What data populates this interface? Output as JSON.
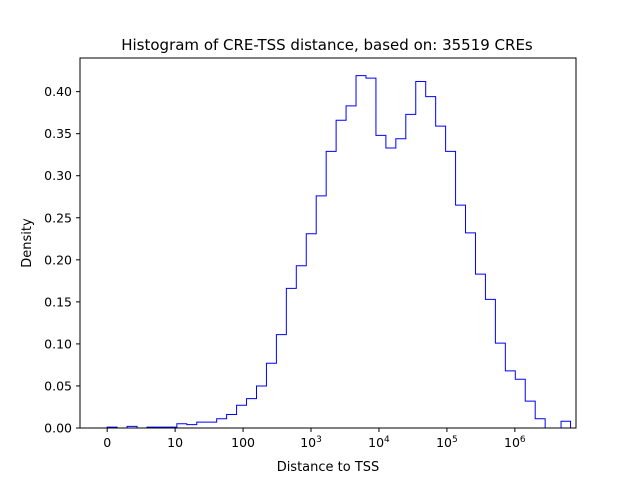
{
  "chart_data": {
    "type": "histogram",
    "title": "Histogram of CRE-TSS distance, based on: 35519 CREs",
    "xlabel": "Distance to TSS",
    "ylabel": "Density",
    "xscale": "log-like (0, 10, 100, 10^3, 10^4, 10^5, 10^6)",
    "xlim": [
      -0.4,
      6.9
    ],
    "ylim": [
      0,
      0.44
    ],
    "grid": false,
    "histtype": "step",
    "color": "#0000ff",
    "x_ticks": [
      {
        "value": 0,
        "label": "0"
      },
      {
        "value": 1,
        "label": "10"
      },
      {
        "value": 2,
        "label": "100"
      },
      {
        "value": 3,
        "base": "10",
        "exp": "3"
      },
      {
        "value": 4,
        "base": "10",
        "exp": "4"
      },
      {
        "value": 5,
        "base": "10",
        "exp": "5"
      },
      {
        "value": 6,
        "base": "10",
        "exp": "6"
      }
    ],
    "y_ticks": [
      "0.00",
      "0.05",
      "0.10",
      "0.15",
      "0.20",
      "0.25",
      "0.30",
      "0.35",
      "0.40"
    ],
    "bin_edges_start": 0,
    "bin_width": 0.1465,
    "values": [
      0.001,
      0.0,
      0.002,
      0.0,
      0.001,
      0.001,
      0.001,
      0.005,
      0.004,
      0.007,
      0.007,
      0.011,
      0.016,
      0.027,
      0.035,
      0.05,
      0.077,
      0.111,
      0.166,
      0.193,
      0.231,
      0.276,
      0.329,
      0.366,
      0.383,
      0.419,
      0.416,
      0.348,
      0.333,
      0.344,
      0.373,
      0.412,
      0.394,
      0.359,
      0.329,
      0.265,
      0.232,
      0.183,
      0.153,
      0.101,
      0.068,
      0.058,
      0.032,
      0.011,
      0.0,
      0.0,
      0.0,
      0.0,
      0.0,
      0.0,
      0.0,
      0.0,
      0.0,
      0.0,
      0.0,
      0.0,
      0.0,
      0.0,
      0.0,
      0.0,
      0.0,
      0.0,
      0.0,
      0.0,
      0.0,
      0.0,
      0.0,
      0.0,
      0.0,
      0.0,
      0.0,
      0.0,
      0.0,
      0.0,
      0.0,
      0.0,
      0.0,
      0.0,
      0.0,
      0.0,
      0.0,
      0.0,
      0.0,
      0.0,
      0.0,
      0.0,
      0.0,
      0.0,
      0.0,
      0.0,
      0.0,
      0.0,
      0.0,
      0.0,
      0.0,
      0.0,
      0.0,
      0.0,
      0.0,
      0.0,
      0.0,
      0.0,
      0.0,
      0.0,
      0.0,
      0.0,
      0.0,
      0.0,
      0.0,
      0.0,
      0.0,
      0.0,
      0.0,
      0.0,
      0.0,
      0.0,
      0.0,
      0.0,
      0.0,
      0.0,
      0.0,
      0.0,
      0.0,
      0.0,
      0.0,
      0.0,
      0.0,
      0.0,
      0.0
    ]
  }
}
